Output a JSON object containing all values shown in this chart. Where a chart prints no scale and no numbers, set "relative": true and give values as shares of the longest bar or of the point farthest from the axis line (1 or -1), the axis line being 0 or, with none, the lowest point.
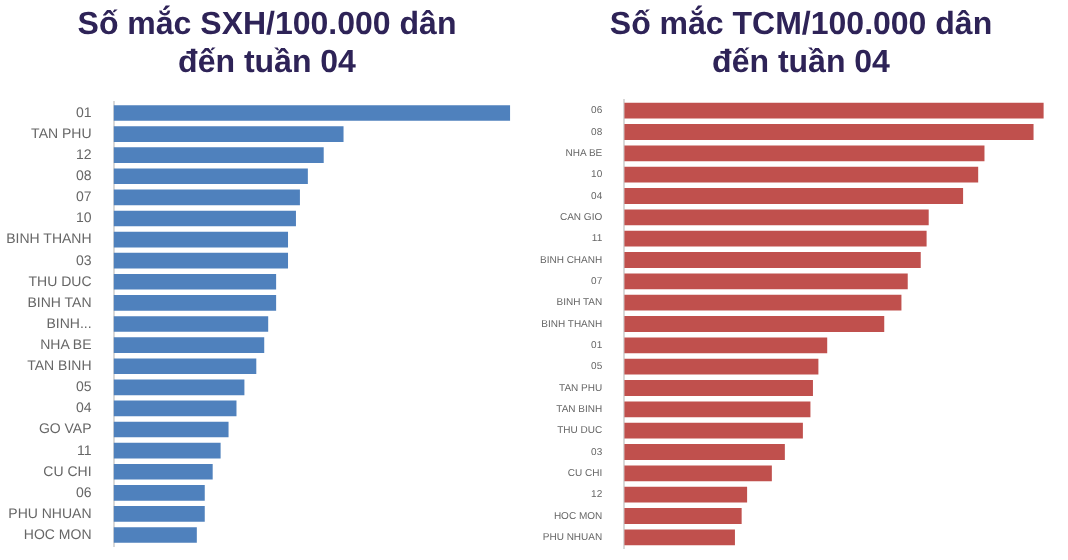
{
  "chart_data": [
    {
      "type": "bar",
      "orientation": "horizontal",
      "relative": true,
      "title": "Số mắc SXH/100.000 dân đến tuần 04",
      "color": "#4f81bd",
      "categories": [
        "01",
        "TAN PHU",
        "12",
        "08",
        "07",
        "10",
        "BINH THANH",
        "03",
        "THU DUC",
        "BINH TAN",
        "BINH...",
        "NHA BE",
        "TAN BINH",
        "05",
        "04",
        "GO VAP",
        "11",
        "CU CHI",
        "06",
        "PHU NHUAN",
        "HOC MON"
      ],
      "values": [
        1,
        0.58,
        0.53,
        0.49,
        0.47,
        0.46,
        0.44,
        0.44,
        0.41,
        0.41,
        0.39,
        0.38,
        0.36,
        0.33,
        0.31,
        0.29,
        0.27,
        0.25,
        0.23,
        0.23,
        0.21
      ]
    },
    {
      "type": "bar",
      "orientation": "horizontal",
      "relative": true,
      "title": "Số mắc TCM/100.000 dân đến tuần 04",
      "color": "#c0504d",
      "categories": [
        "06",
        "08",
        "NHA BE",
        "10",
        "04",
        "CAN GIO",
        "11",
        "BINH CHANH",
        "07",
        "BINH TAN",
        "BINH THANH",
        "01",
        "05",
        "TAN PHU",
        "TAN BINH",
        "THU DUC",
        "03",
        "CU CHI",
        "12",
        "HOC MON",
        "PHU NHUAN"
      ],
      "values": [
        1,
        0.976,
        0.859,
        0.844,
        0.808,
        0.726,
        0.721,
        0.707,
        0.676,
        0.661,
        0.62,
        0.484,
        0.463,
        0.45,
        0.444,
        0.426,
        0.383,
        0.352,
        0.293,
        0.28,
        0.264
      ]
    }
  ]
}
